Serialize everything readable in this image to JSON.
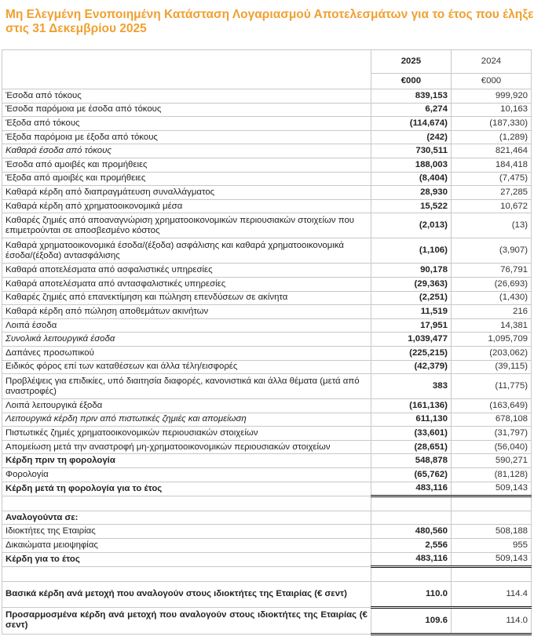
{
  "title": "Μη Ελεγμένη Ενοποιημένη Κατάσταση Λογαριασμού Αποτελεσμάτων για το έτος που έληξε στις 31 Δεκεμβρίου 2025",
  "colors": {
    "title": "#f0a030"
  },
  "columns": {
    "y1": "2025",
    "y2": "2024",
    "unit1": "€000",
    "unit2": "€000"
  },
  "rows": [
    {
      "label": "Έσοδα από τόκους",
      "v1": "839,153",
      "v2": "999,920",
      "cls": ""
    },
    {
      "label": "Έσοδα παρόμοια με έσοδα από τόκους",
      "v1": "6,274",
      "v2": "10,163",
      "cls": ""
    },
    {
      "label": "Έξοδα από τόκους",
      "v1": "(114,674)",
      "v2": "(187,330)",
      "cls": ""
    },
    {
      "label": "Έξοδα παρόμοια με έξοδα από τόκους",
      "v1": "(242)",
      "v2": "(1,289)",
      "cls": ""
    },
    {
      "label": "Καθαρά έσοδα από τόκους",
      "v1": "730,511",
      "v2": "821,464",
      "cls": "italic top"
    },
    {
      "label": "Έσοδα από αμοιβές και προμήθειες",
      "v1": "188,003",
      "v2": "184,418",
      "cls": ""
    },
    {
      "label": "Έξοδα από αμοιβές και προμήθειες",
      "v1": "(8,404)",
      "v2": "(7,475)",
      "cls": ""
    },
    {
      "label": "Καθαρά κέρδη από διαπραγμάτευση συναλλάγματος",
      "v1": "28,930",
      "v2": "27,285",
      "cls": ""
    },
    {
      "label": "Καθαρά κέρδη από χρηματοοικονομικά μέσα",
      "v1": "15,522",
      "v2": "10,672",
      "cls": ""
    },
    {
      "label": "Καθαρές ζημιές από αποαναγνώριση χρηματοοικονομικών περιουσιακών στοιχείων που επιμετρούνται σε αποσβεσμένο κόστος",
      "v1": "(2,013)",
      "v2": "(13)",
      "cls": "two"
    },
    {
      "label": "Καθαρά χρηματοοικονομικά έσοδα/(έξοδα) ασφάλισης και καθαρά χρηματοοικονομικά έσοδα/(έξοδα) αντασφάλισης",
      "v1": "(1,106)",
      "v2": "(3,907)",
      "cls": "two"
    },
    {
      "label": "Καθαρά αποτελέσματα από ασφαλιστικές υπηρεσίες",
      "v1": "90,178",
      "v2": "76,791",
      "cls": ""
    },
    {
      "label": "Καθαρά αποτελέσματα από αντασφαλιστικές υπηρεσίες",
      "v1": "(29,363)",
      "v2": "(26,693)",
      "cls": ""
    },
    {
      "label": "Καθαρές ζημιές από επανεκτίμηση και πώληση επενδύσεων σε ακίνητα",
      "v1": "(2,251)",
      "v2": "(1,430)",
      "cls": ""
    },
    {
      "label": "Καθαρά κέρδη από πώληση αποθεμάτων ακινήτων",
      "v1": "11,519",
      "v2": "216",
      "cls": ""
    },
    {
      "label": "Λοιπά έσοδα",
      "v1": "17,951",
      "v2": "14,381",
      "cls": ""
    },
    {
      "label": "Συνολικά λειτουργικά έσοδα",
      "v1": "1,039,477",
      "v2": "1,095,709",
      "cls": "italic top"
    },
    {
      "label": "Δαπάνες προσωπικού",
      "v1": "(225,215)",
      "v2": "(203,062)",
      "cls": ""
    },
    {
      "label": "Ειδικός φόρος επί των καταθέσεων και άλλα τέλη/εισφορές",
      "v1": "(42,379)",
      "v2": "(39,115)",
      "cls": ""
    },
    {
      "label": "Προβλέψεις για επιδικίες, υπό διαιτησία διαφορές, κανονιστικά και άλλα θέματα (μετά από αναστροφές)",
      "v1": "383",
      "v2": "(11,775)",
      "cls": "two"
    },
    {
      "label": "Λοιπά λειτουργικά έξοδα",
      "v1": "(161,136)",
      "v2": "(163,649)",
      "cls": ""
    },
    {
      "label": "Λειτουργικά κέρδη πριν από πιστωτικές ζημιές και απομείωση",
      "v1": "611,130",
      "v2": "678,108",
      "cls": "italic top"
    },
    {
      "label": "Πιστωτικές ζημιές χρηματοοικονομικών περιουσιακών στοιχείων",
      "v1": "(33,601)",
      "v2": "(31,797)",
      "cls": ""
    },
    {
      "label": "Απομείωση μετά την αναστροφή μη-χρηματοοικονομικών περιουσιακών στοιχείων",
      "v1": "(28,651)",
      "v2": "(56,040)",
      "cls": ""
    },
    {
      "label": "Κέρδη πριν τη φορολογία",
      "v1": "548,878",
      "v2": "590,271",
      "cls": "bold top"
    },
    {
      "label": "Φορολογία",
      "v1": "(65,762)",
      "v2": "(81,128)",
      "cls": ""
    },
    {
      "label": "Κέρδη μετά τη φορολογία για το έτος",
      "v1": "483,116",
      "v2": "509,143",
      "cls": "bold top dbl"
    },
    {
      "label": "",
      "v1": "",
      "v2": "",
      "cls": "blank"
    },
    {
      "label": "Αναλογούντα σε:",
      "v1": "",
      "v2": "",
      "cls": "bold"
    },
    {
      "label": "Ιδιοκτήτες της Εταιρίας",
      "v1": "480,560",
      "v2": "508,188",
      "cls": ""
    },
    {
      "label": "Δικαιώματα μειοψηφίας",
      "v1": "2,556",
      "v2": "955",
      "cls": ""
    },
    {
      "label": "Κέρδη για το έτος",
      "v1": "483,116",
      "v2": "509,143",
      "cls": "bold top dbl"
    },
    {
      "label": "",
      "v1": "",
      "v2": "",
      "cls": "blank"
    },
    {
      "label": "Βασικά κέρδη ανά μετοχή που αναλογούν στους ιδιοκτήτες της Εταιρίας (€ σεντ)",
      "v1": "110.0",
      "v2": "114.4",
      "cls": "bold two dbl"
    },
    {
      "label": "Προσαρμοσμένα κέρδη ανά μετοχή που αναλογούν στους ιδιοκτήτες της Εταιρίας (€ σεντ)",
      "v1": "109.6",
      "v2": "114.0",
      "cls": "bold two dbl justify"
    }
  ]
}
